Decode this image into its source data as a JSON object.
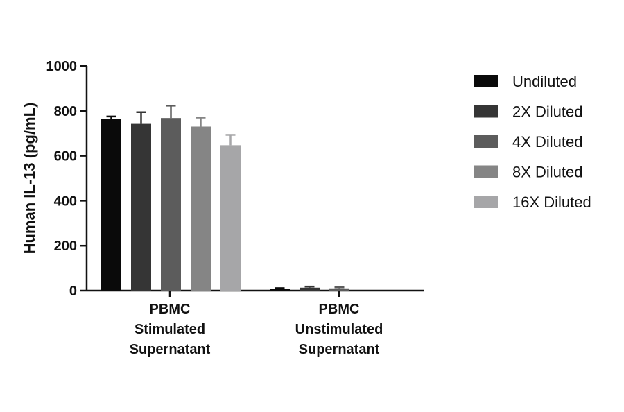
{
  "chart_data": {
    "type": "bar",
    "title": "",
    "xlabel": "",
    "ylabel": "Human IL-13 (pg/mL)",
    "ylim": [
      0,
      1000
    ],
    "yticks": [
      0,
      200,
      400,
      600,
      800,
      1000
    ],
    "categories": [
      [
        "PBMC",
        "Stimulated",
        "Supernatant"
      ],
      [
        "PBMC",
        "Unstimulated",
        "Supernatant"
      ]
    ],
    "series": [
      {
        "name": "Undiluted",
        "color": "#0a0a0a",
        "values": [
          765,
          8
        ],
        "errors": [
          10,
          3
        ]
      },
      {
        "name": "2X Diluted",
        "color": "#353535",
        "values": [
          742,
          13
        ],
        "errors": [
          52,
          5
        ]
      },
      {
        "name": "4X Diluted",
        "color": "#5c5c5c",
        "values": [
          768,
          10
        ],
        "errors": [
          55,
          5
        ]
      },
      {
        "name": "8X Diluted",
        "color": "#858585",
        "values": [
          730,
          0
        ],
        "errors": [
          40,
          0
        ]
      },
      {
        "name": "16X Diluted",
        "color": "#a6a6a8",
        "values": [
          647,
          0
        ],
        "errors": [
          46,
          0
        ]
      }
    ],
    "legend": "right",
    "grid": false
  }
}
